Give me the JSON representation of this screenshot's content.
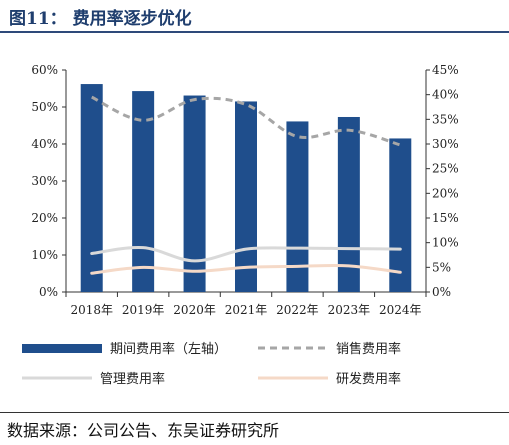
{
  "header": {
    "title": "图11：  费用率逐步优化"
  },
  "footer": {
    "source": "数据来源：公司公告、东吴证券研究所"
  },
  "chart_data": {
    "type": "bar",
    "categories": [
      "2018年",
      "2019年",
      "2020年",
      "2021年",
      "2022年",
      "2023年",
      "2024年"
    ],
    "left_axis": {
      "ylim": [
        0,
        60
      ],
      "ticks": [
        "0%",
        "10%",
        "20%",
        "30%",
        "40%",
        "50%",
        "60%"
      ]
    },
    "right_axis": {
      "ylim": [
        0,
        45
      ],
      "ticks": [
        "0%",
        "5%",
        "10%",
        "15%",
        "20%",
        "25%",
        "30%",
        "35%",
        "40%",
        "45%"
      ]
    },
    "series": [
      {
        "name": "期间费用率（左轴）",
        "type": "bar",
        "axis": "left",
        "color": "#1f4e8c",
        "values": [
          56.2,
          54.3,
          53.1,
          51.5,
          46.1,
          47.3,
          41.5
        ]
      },
      {
        "name": "销售费用率",
        "type": "line",
        "axis": "right",
        "style": "dashed",
        "color": "#a6a6a6",
        "values": [
          39.5,
          34.8,
          39.0,
          38.0,
          31.5,
          32.8,
          29.8
        ]
      },
      {
        "name": "管理费用率",
        "type": "line",
        "axis": "right",
        "style": "solid",
        "color": "#d9d9d9",
        "values": [
          7.8,
          9.0,
          6.3,
          8.7,
          8.9,
          8.8,
          8.7
        ]
      },
      {
        "name": "研发费用率",
        "type": "line",
        "axis": "right",
        "style": "solid",
        "color": "#f5d9c7",
        "values": [
          3.8,
          5.0,
          4.2,
          5.0,
          5.2,
          5.3,
          4.0
        ]
      }
    ],
    "grid": false,
    "legend": "bottom"
  }
}
